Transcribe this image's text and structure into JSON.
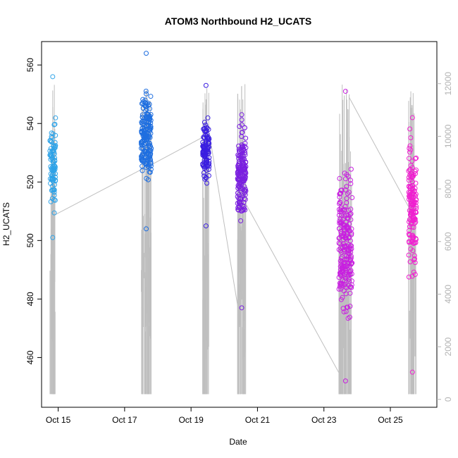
{
  "chart_data": {
    "type": "scatter",
    "title": "ATOM3 Northbound H2_UCATS",
    "xlabel": "Date",
    "ylabel": "H2_UCATS",
    "xlim_days": [
      14.5,
      26.4
    ],
    "ylim": [
      443,
      568
    ],
    "y2lim": [
      -300,
      13600
    ],
    "x_ticks": [
      15,
      17,
      19,
      21,
      23,
      25
    ],
    "x_tick_labels": [
      "Oct 15",
      "Oct 17",
      "Oct 19",
      "Oct 21",
      "Oct 23",
      "Oct 25"
    ],
    "y_ticks": [
      460,
      480,
      500,
      520,
      540,
      560
    ],
    "y_tick_labels": [
      "460",
      "480",
      "500",
      "520",
      "540",
      "560"
    ],
    "y2_ticks": [
      0,
      2000,
      4000,
      6000,
      8000,
      10000,
      12000
    ],
    "y2_tick_labels": [
      "0",
      "2000",
      "4000",
      "6000",
      "8000",
      "10000",
      "12000"
    ],
    "grid": false,
    "series_colors": {
      "flight1": "#2ea3e8",
      "flight2": "#1f6fe0",
      "flight3": "#3a1ee0",
      "flight4": "#7a1fe0",
      "flight5": "#c81fe0",
      "flight6": "#f01fd0",
      "altitude_line": "#bfbfbf"
    },
    "flights": [
      {
        "color": "#2ea3e8",
        "x_range": [
          14.75,
          14.92
        ],
        "y_range": [
          501,
          556
        ],
        "center": 527,
        "n": 90
      },
      {
        "color": "#1f6fe0",
        "x_range": [
          17.5,
          17.8
        ],
        "y_range": [
          504,
          564
        ],
        "center": 535,
        "n": 190
      },
      {
        "color": "#3a1ee0",
        "x_range": [
          19.35,
          19.55
        ],
        "y_range": [
          505,
          553
        ],
        "center": 530,
        "n": 110
      },
      {
        "color": "#7a1fe0",
        "x_range": [
          20.4,
          20.65
        ],
        "y_range": [
          477,
          543
        ],
        "center": 523,
        "n": 170
      },
      {
        "color": "#c81fe0",
        "x_range": [
          23.45,
          23.85
        ],
        "y_range": [
          452,
          551
        ],
        "center": 498,
        "n": 220
      },
      {
        "color": "#f01fd0",
        "x_range": [
          25.55,
          25.78
        ],
        "y_range": [
          455,
          542
        ],
        "center": 512,
        "n": 150
      }
    ],
    "altitude_connectors": [
      [
        [
          14.88,
          7000
        ],
        [
          17.6,
          8800
        ]
      ],
      [
        [
          17.78,
          8900
        ],
        [
          19.55,
          10100
        ]
      ],
      [
        [
          19.55,
          10100
        ],
        [
          20.45,
          3200
        ]
      ],
      [
        [
          20.62,
          7500
        ],
        [
          23.5,
          900
        ]
      ],
      [
        [
          23.75,
          11500
        ],
        [
          25.6,
          7200
        ]
      ]
    ]
  }
}
